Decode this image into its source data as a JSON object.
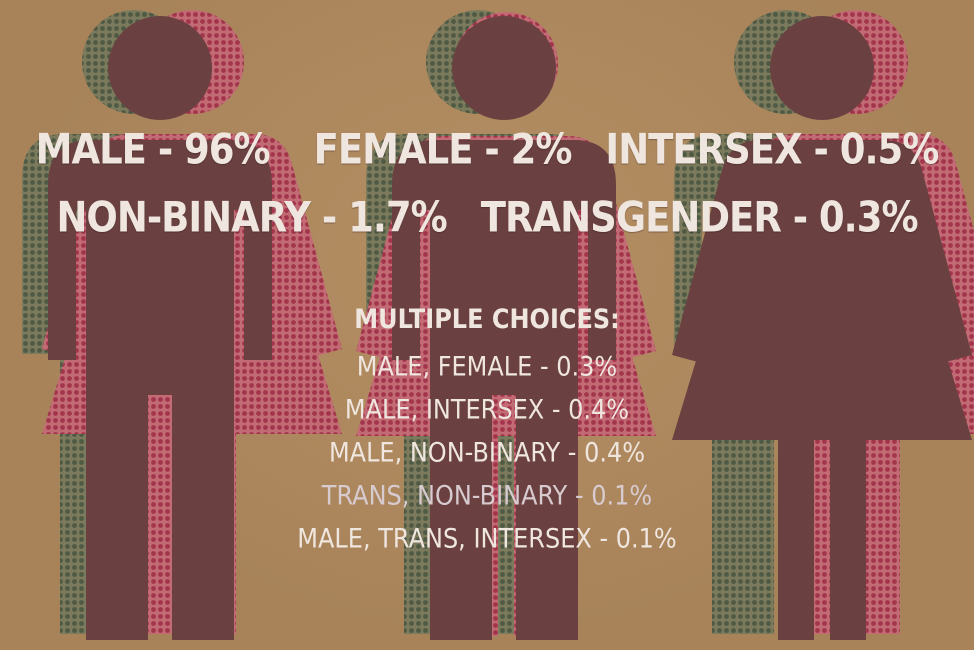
{
  "colors": {
    "background": "#b08a5f",
    "figure_fill": "#6a4140",
    "halftone_green": "#5d6a4f",
    "halftone_red": "#b0485a",
    "text": "#efe6df"
  },
  "figures": [
    {
      "name": "male-female-figure",
      "icon": "male-female-icon"
    },
    {
      "name": "male-figure",
      "icon": "male-icon"
    },
    {
      "name": "female-figure",
      "icon": "female-icon"
    }
  ],
  "stats": {
    "row1": [
      "MALE - 96%",
      "FEMALE - 2%",
      "INTERSEX - 0.5%"
    ],
    "row2": [
      "NON-BINARY - 1.7%",
      "TRANSGENDER - 0.3%"
    ]
  },
  "multiple": {
    "title": "MULTIPLE CHOICES:",
    "items": [
      "MALE, FEMALE - 0.3%",
      "MALE, INTERSEX - 0.4%",
      "MALE, NON-BINARY - 0.4%",
      "TRANS, NON-BINARY - 0.1%",
      "MALE, TRANS, INTERSEX - 0.1%"
    ]
  }
}
